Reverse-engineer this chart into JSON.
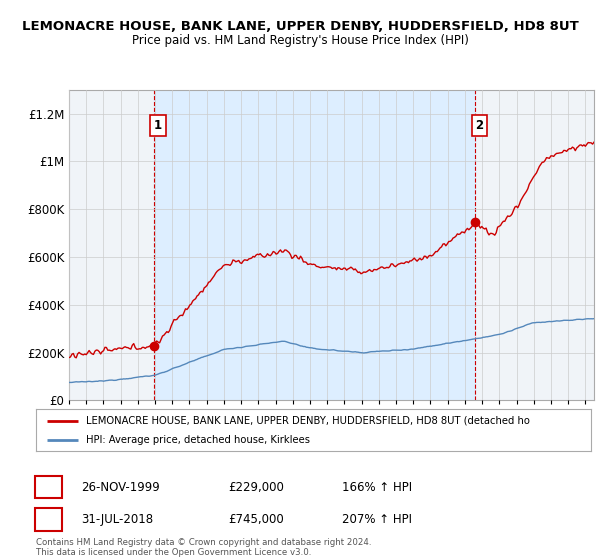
{
  "title": "LEMONACRE HOUSE, BANK LANE, UPPER DENBY, HUDDERSFIELD, HD8 8UT",
  "subtitle": "Price paid vs. HM Land Registry's House Price Index (HPI)",
  "ylabel_ticks": [
    "£0",
    "£200K",
    "£400K",
    "£600K",
    "£800K",
    "£1M",
    "£1.2M"
  ],
  "ytick_values": [
    0,
    200000,
    400000,
    600000,
    800000,
    1000000,
    1200000
  ],
  "ylim": [
    0,
    1300000
  ],
  "xlim_start": 1995.0,
  "xlim_end": 2025.5,
  "sale1": {
    "date_x": 1999.92,
    "price": 229000,
    "label": "1"
  },
  "sale2": {
    "date_x": 2018.58,
    "price": 745000,
    "label": "2"
  },
  "red_line_color": "#cc0000",
  "blue_line_color": "#5588bb",
  "shade_color": "#ddeeff",
  "legend_red_label": "LEMONACRE HOUSE, BANK LANE, UPPER DENBY, HUDDERSFIELD, HD8 8UT (detached ho",
  "legend_blue_label": "HPI: Average price, detached house, Kirklees",
  "annotation1_date": "26-NOV-1999",
  "annotation1_price": "£229,000",
  "annotation1_hpi": "166% ↑ HPI",
  "annotation2_date": "31-JUL-2018",
  "annotation2_price": "£745,000",
  "annotation2_hpi": "207% ↑ HPI",
  "footer": "Contains HM Land Registry data © Crown copyright and database right 2024.\nThis data is licensed under the Open Government Licence v3.0.",
  "background_color": "#ffffff",
  "plot_bg_color": "#f0f4f8",
  "grid_color": "#cccccc"
}
